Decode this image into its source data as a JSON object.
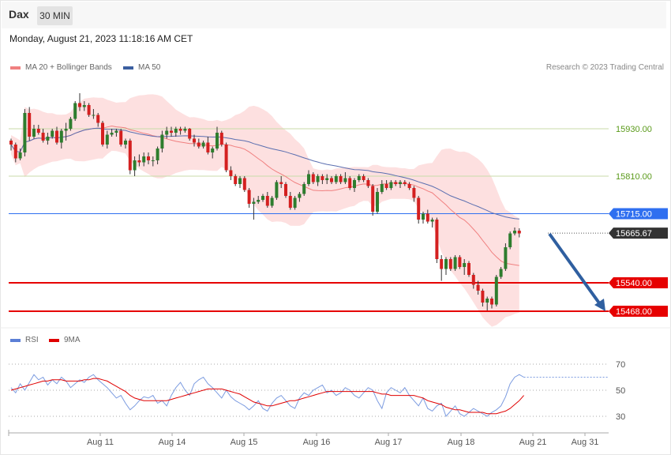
{
  "header": {
    "symbol": "Dax",
    "timeframe": "30 MIN"
  },
  "timestamp": "Monday, August 21, 2023 11:18:16 AM CET",
  "legend": {
    "ma20_bb": {
      "label": "MA 20 + Bollinger Bands",
      "color": "#f08080"
    },
    "ma50": {
      "label": "MA 50",
      "color": "#3b5fa0"
    }
  },
  "copyright": "Research © 2023 Trading Central",
  "rsi_legend": {
    "rsi": {
      "label": "RSI",
      "color": "#5b7fd6"
    },
    "ma9": {
      "label": "9MA",
      "color": "#e00000"
    }
  },
  "levels": [
    {
      "value": 15930.0,
      "label": "15930.00",
      "style": "plain",
      "color": "#c8dba8",
      "text_color": "#5a9a1a"
    },
    {
      "value": 15810.0,
      "label": "15810.00",
      "style": "plain",
      "color": "#c8dba8",
      "text_color": "#5a9a1a"
    },
    {
      "value": 15715.0,
      "label": "15715.00",
      "style": "tag",
      "color": "#2f6ff0",
      "text_color": "#ffffff"
    },
    {
      "value": 15540.0,
      "label": "15540.00",
      "style": "tag",
      "color": "#e60000",
      "text_color": "#ffffff"
    },
    {
      "value": 15468.0,
      "label": "15468.00",
      "style": "tag",
      "color": "#e60000",
      "text_color": "#ffffff"
    }
  ],
  "last_price": {
    "value": 15665.67,
    "label": "15665.67"
  },
  "x_labels": [
    "Aug 11",
    "Aug 14",
    "Aug 15",
    "Aug 16",
    "Aug 17",
    "Aug 18",
    "Aug 21",
    "Aug 31"
  ],
  "rsi_levels": [
    "70",
    "50",
    "30"
  ],
  "chart_data": {
    "type": "candlestick",
    "price_ylim": [
      15450,
      16000
    ],
    "rsi_ylim": [
      20,
      80
    ],
    "candles": [
      [
        15900,
        15905,
        15875,
        15890
      ],
      [
        15890,
        15895,
        15845,
        15855
      ],
      [
        15855,
        15880,
        15850,
        15870
      ],
      [
        15870,
        15980,
        15860,
        15970
      ],
      [
        15970,
        15985,
        15900,
        15910
      ],
      [
        15910,
        15940,
        15905,
        15930
      ],
      [
        15930,
        15940,
        15915,
        15920
      ],
      [
        15920,
        15930,
        15895,
        15900
      ],
      [
        15900,
        15920,
        15890,
        15910
      ],
      [
        15910,
        15930,
        15905,
        15925
      ],
      [
        15925,
        15935,
        15890,
        15895
      ],
      [
        15895,
        15930,
        15880,
        15925
      ],
      [
        15925,
        15945,
        15900,
        15930
      ],
      [
        15930,
        15960,
        15925,
        15955
      ],
      [
        15955,
        16000,
        15950,
        15995
      ],
      [
        15995,
        16020,
        15975,
        15985
      ],
      [
        15985,
        16000,
        15975,
        15990
      ],
      [
        15990,
        15995,
        15960,
        15965
      ],
      [
        15965,
        15980,
        15955,
        15965
      ],
      [
        15965,
        15970,
        15935,
        15945
      ],
      [
        15945,
        15950,
        15885,
        15890
      ],
      [
        15890,
        15925,
        15880,
        15915
      ],
      [
        15915,
        15930,
        15910,
        15920
      ],
      [
        15920,
        15930,
        15910,
        15925
      ],
      [
        15925,
        15930,
        15885,
        15890
      ],
      [
        15890,
        15905,
        15880,
        15900
      ],
      [
        15900,
        15905,
        15815,
        15825
      ],
      [
        15825,
        15860,
        15810,
        15850
      ],
      [
        15850,
        15865,
        15835,
        15845
      ],
      [
        15845,
        15870,
        15835,
        15860
      ],
      [
        15860,
        15870,
        15840,
        15850
      ],
      [
        15850,
        15860,
        15835,
        15850
      ],
      [
        15850,
        15885,
        15840,
        15880
      ],
      [
        15880,
        15925,
        15870,
        15915
      ],
      [
        15915,
        15935,
        15905,
        15925
      ],
      [
        15925,
        15935,
        15910,
        15920
      ],
      [
        15920,
        15935,
        15910,
        15930
      ],
      [
        15930,
        15935,
        15915,
        15925
      ],
      [
        15925,
        15935,
        15920,
        15930
      ],
      [
        15930,
        15932,
        15900,
        15905
      ],
      [
        15905,
        15915,
        15885,
        15895
      ],
      [
        15895,
        15905,
        15880,
        15885
      ],
      [
        15885,
        15900,
        15880,
        15895
      ],
      [
        15895,
        15910,
        15865,
        15870
      ],
      [
        15870,
        15885,
        15855,
        15880
      ],
      [
        15880,
        15935,
        15875,
        15920
      ],
      [
        15920,
        15925,
        15885,
        15890
      ],
      [
        15890,
        15895,
        15820,
        15825
      ],
      [
        15825,
        15835,
        15800,
        15810
      ],
      [
        15810,
        15815,
        15785,
        15790
      ],
      [
        15790,
        15810,
        15780,
        15805
      ],
      [
        15805,
        15810,
        15770,
        15775
      ],
      [
        15775,
        15780,
        15730,
        15740
      ],
      [
        15740,
        15755,
        15700,
        15745
      ],
      [
        15745,
        15760,
        15740,
        15750
      ],
      [
        15750,
        15765,
        15745,
        15760
      ],
      [
        15760,
        15770,
        15730,
        15735
      ],
      [
        15735,
        15760,
        15730,
        15755
      ],
      [
        15755,
        15800,
        15750,
        15795
      ],
      [
        15795,
        15810,
        15780,
        15790
      ],
      [
        15790,
        15795,
        15755,
        15760
      ],
      [
        15760,
        15770,
        15725,
        15730
      ],
      [
        15730,
        15760,
        15725,
        15755
      ],
      [
        15755,
        15770,
        15745,
        15765
      ],
      [
        15765,
        15795,
        15760,
        15790
      ],
      [
        15790,
        15825,
        15785,
        15815
      ],
      [
        15815,
        15820,
        15790,
        15795
      ],
      [
        15795,
        15815,
        15785,
        15810
      ],
      [
        15810,
        15815,
        15790,
        15800
      ],
      [
        15800,
        15815,
        15790,
        15805
      ],
      [
        15805,
        15810,
        15790,
        15795
      ],
      [
        15795,
        15815,
        15790,
        15810
      ],
      [
        15810,
        15815,
        15790,
        15795
      ],
      [
        15795,
        15820,
        15790,
        15805
      ],
      [
        15805,
        15810,
        15775,
        15780
      ],
      [
        15780,
        15805,
        15770,
        15800
      ],
      [
        15800,
        15815,
        15795,
        15810
      ],
      [
        15810,
        15815,
        15795,
        15800
      ],
      [
        15800,
        15805,
        15780,
        15785
      ],
      [
        15785,
        15790,
        15710,
        15720
      ],
      [
        15720,
        15780,
        15715,
        15770
      ],
      [
        15770,
        15800,
        15765,
        15790
      ],
      [
        15790,
        15800,
        15775,
        15780
      ],
      [
        15780,
        15800,
        15775,
        15795
      ],
      [
        15795,
        15800,
        15785,
        15790
      ],
      [
        15790,
        15800,
        15780,
        15795
      ],
      [
        15795,
        15800,
        15785,
        15790
      ],
      [
        15790,
        15795,
        15775,
        15780
      ],
      [
        15780,
        15785,
        15745,
        15755
      ],
      [
        15755,
        15760,
        15690,
        15700
      ],
      [
        15700,
        15720,
        15690,
        15715
      ],
      [
        15715,
        15725,
        15690,
        15695
      ],
      [
        15695,
        15705,
        15680,
        15700
      ],
      [
        15700,
        15705,
        15590,
        15600
      ],
      [
        15600,
        15610,
        15545,
        15575
      ],
      [
        15575,
        15605,
        15560,
        15600
      ],
      [
        15600,
        15605,
        15570,
        15575
      ],
      [
        15575,
        15610,
        15570,
        15605
      ],
      [
        15605,
        15610,
        15575,
        15580
      ],
      [
        15580,
        15600,
        15560,
        15590
      ],
      [
        15590,
        15595,
        15555,
        15560
      ],
      [
        15560,
        15565,
        15525,
        15535
      ],
      [
        15535,
        15545,
        15510,
        15520
      ],
      [
        15520,
        15525,
        15480,
        15490
      ],
      [
        15490,
        15505,
        15470,
        15500
      ],
      [
        15500,
        15505,
        15475,
        15485
      ],
      [
        15485,
        15560,
        15480,
        15555
      ],
      [
        15555,
        15580,
        15550,
        15575
      ],
      [
        15575,
        15640,
        15570,
        15630
      ],
      [
        15630,
        15670,
        15625,
        15665
      ],
      [
        15665,
        15680,
        15660,
        15672
      ],
      [
        15672,
        15678,
        15655,
        15665
      ]
    ],
    "rsi": [
      52,
      48,
      55,
      50,
      56,
      62,
      58,
      60,
      54,
      58,
      55,
      60,
      57,
      52,
      55,
      58,
      56,
      60,
      62,
      58,
      55,
      52,
      48,
      44,
      46,
      40,
      35,
      38,
      42,
      45,
      44,
      46,
      40,
      42,
      38,
      46,
      52,
      56,
      50,
      46,
      55,
      58,
      60,
      55,
      52,
      48,
      44,
      50,
      45,
      42,
      40,
      38,
      35,
      38,
      42,
      36,
      34,
      40,
      44,
      46,
      42,
      38,
      36,
      44,
      48,
      46,
      50,
      52,
      54,
      48,
      50,
      46,
      48,
      52,
      50,
      46,
      44,
      48,
      52,
      50,
      42,
      36,
      48,
      52,
      50,
      48,
      52,
      46,
      42,
      38,
      44,
      36,
      34,
      38,
      40,
      30,
      34,
      38,
      32,
      30,
      33,
      36,
      34,
      32,
      30,
      33,
      35,
      38,
      45,
      55,
      60,
      62,
      60
    ],
    "rsi_ma9": [
      50,
      51,
      52,
      53,
      54,
      55,
      56,
      57,
      57,
      58,
      58,
      58,
      57,
      57,
      57,
      57,
      58,
      58,
      59,
      59,
      58,
      57,
      55,
      53,
      51,
      49,
      46,
      44,
      43,
      42,
      42,
      42,
      42,
      42,
      42,
      43,
      44,
      45,
      46,
      47,
      48,
      49,
      50,
      51,
      51,
      51,
      51,
      50,
      49,
      48,
      47,
      45,
      43,
      41,
      40,
      39,
      38,
      38,
      39,
      40,
      41,
      42,
      42,
      43,
      44,
      45,
      46,
      47,
      48,
      49,
      49,
      49,
      49,
      49,
      49,
      49,
      49,
      49,
      49,
      49,
      48,
      47,
      47,
      46,
      46,
      46,
      46,
      46,
      46,
      45,
      44,
      42,
      41,
      40,
      39,
      37,
      36,
      35,
      35,
      34,
      33,
      33,
      33,
      33,
      32,
      32,
      32,
      33,
      34,
      36,
      39,
      42,
      46
    ]
  }
}
